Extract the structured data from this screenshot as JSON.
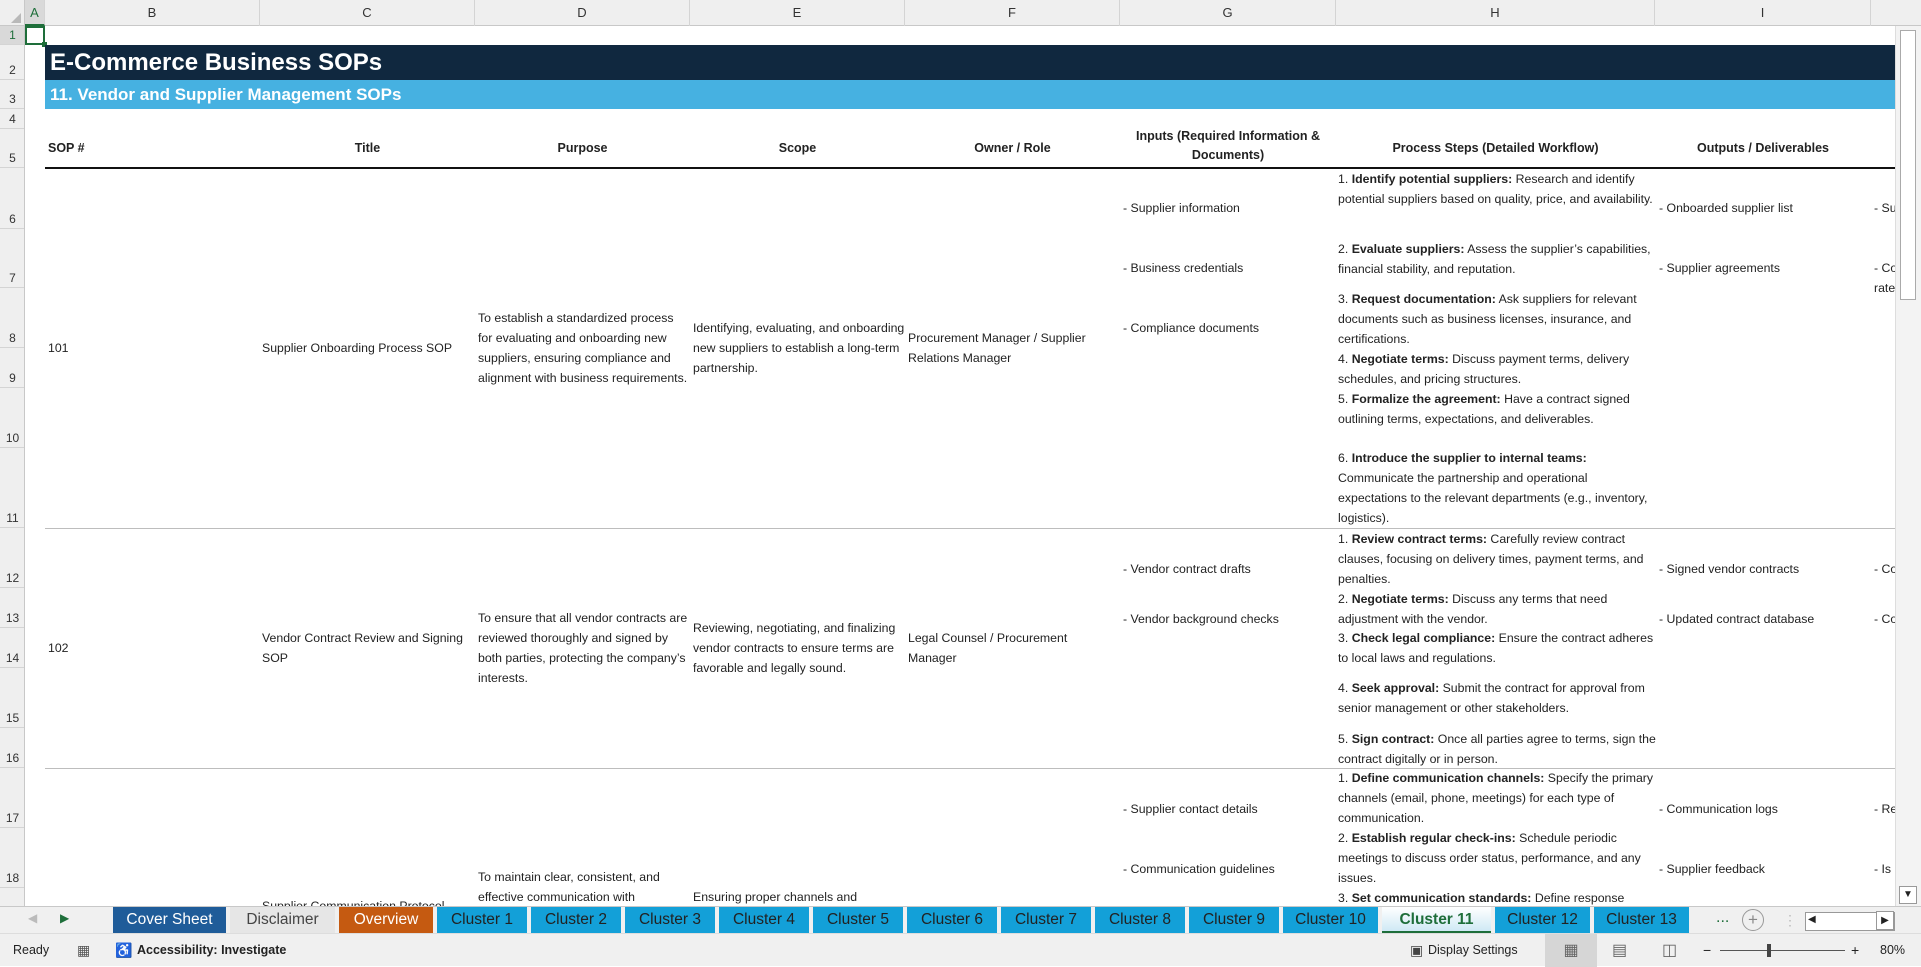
{
  "columns": [
    "A",
    "B",
    "C",
    "D",
    "E",
    "F",
    "G",
    "H",
    "I"
  ],
  "rows": [
    "1",
    "2",
    "3",
    "4",
    "5",
    "6",
    "7",
    "8",
    "9",
    "10",
    "11",
    "12",
    "13",
    "14",
    "15",
    "16",
    "17",
    "18"
  ],
  "sheet": {
    "title": "E-Commerce Business SOPs",
    "subtitle": "11. Vendor and Supplier Management SOPs",
    "headers": {
      "sop": "SOP #",
      "title": "Title",
      "purpose": "Purpose",
      "scope": "Scope",
      "owner": "Owner / Role",
      "inputs": "Inputs (Required Information & Documents)",
      "steps": "Process Steps (Detailed Workflow)",
      "outputs": "Outputs / Deliverables"
    },
    "sops": [
      {
        "id": "101",
        "title": "Supplier Onboarding Process SOP",
        "purpose": "To establish a standardized process for evaluating and onboarding new suppliers, ensuring compliance and alignment with business requirements.",
        "scope": "Identifying, evaluating, and onboarding new suppliers to establish a long-term partnership.",
        "owner": "Procurement Manager / Supplier Relations Manager",
        "inputs": [
          "- Supplier information",
          "- Business credentials",
          "- Compliance documents"
        ],
        "steps": [
          {
            "num": "1. ",
            "bold": "Identify potential suppliers:",
            "text": " Research and identify potential suppliers based on quality, price, and availability."
          },
          {
            "num": "2. ",
            "bold": "Evaluate suppliers:",
            "text": " Assess the supplier’s capabilities, financial stability, and reputation."
          },
          {
            "num": "3. ",
            "bold": "Request documentation:",
            "text": " Ask suppliers for relevant documents such as business licenses, insurance, and certifications."
          },
          {
            "num": "4. ",
            "bold": "Negotiate terms:",
            "text": " Discuss payment terms, delivery schedules, and pricing structures."
          },
          {
            "num": "5. ",
            "bold": "Formalize the agreement:",
            "text": " Have a contract signed outlining terms, expectations, and deliverables."
          },
          {
            "num": "6. ",
            "bold": "Introduce the supplier to internal teams:",
            "text": " Communicate the partnership and operational expectations to the relevant departments (e.g., inventory, logistics)."
          }
        ],
        "outputs": [
          "- Onboarded supplier list",
          "- Supplier agreements"
        ],
        "next_col": [
          "- Su",
          "- Co",
          "rate"
        ]
      },
      {
        "id": "102",
        "title": "Vendor Contract Review and Signing SOP",
        "purpose": "To ensure that all vendor contracts are reviewed thoroughly and signed by both parties, protecting the company’s interests.",
        "scope": "Reviewing, negotiating, and finalizing vendor contracts to ensure terms are favorable and legally sound.",
        "owner": "Legal Counsel / Procurement Manager",
        "inputs": [
          "- Vendor contract drafts",
          "- Vendor background checks"
        ],
        "steps": [
          {
            "num": "1. ",
            "bold": "Review contract terms:",
            "text": " Carefully review contract clauses, focusing on delivery times, payment terms, and penalties."
          },
          {
            "num": "2. ",
            "bold": "Negotiate terms:",
            "text": " Discuss any terms that need adjustment with the vendor."
          },
          {
            "num": "3. ",
            "bold": "Check legal compliance:",
            "text": " Ensure the contract adheres to local laws and regulations."
          },
          {
            "num": "4. ",
            "bold": "Seek approval:",
            "text": " Submit the contract for approval from senior management or other stakeholders."
          },
          {
            "num": "5. ",
            "bold": "Sign contract:",
            "text": " Once all parties agree to terms, sign the contract digitally or in person."
          }
        ],
        "outputs": [
          "- Signed vendor contracts",
          "- Updated contract database"
        ],
        "next_col": [
          "- Co",
          "- Co"
        ]
      },
      {
        "title": "Supplier Communication Protocol",
        "purpose": "To maintain clear, consistent, and effective communication with",
        "scope": "Ensuring proper channels and",
        "inputs": [
          "- Supplier contact details",
          "- Communication guidelines"
        ],
        "steps": [
          {
            "num": "1. ",
            "bold": "Define communication channels:",
            "text": " Specify the primary channels (email, phone, meetings) for each type of communication."
          },
          {
            "num": "2. ",
            "bold": "Establish regular check-ins:",
            "text": " Schedule periodic meetings to discuss order status, performance, and any issues."
          },
          {
            "num": "3. ",
            "bold": "Set communication standards:",
            "text": " Define response"
          }
        ],
        "outputs": [
          "- Communication logs",
          "- Supplier feedback"
        ],
        "next_col": [
          "- Re",
          "- Is"
        ]
      }
    ]
  },
  "tabs": [
    "Cover Sheet",
    "Disclaimer",
    "Overview",
    "Cluster 1",
    "Cluster 2",
    "Cluster 3",
    "Cluster 4",
    "Cluster 5",
    "Cluster 6",
    "Cluster 7",
    "Cluster 8",
    "Cluster 9",
    "Cluster 10",
    "Cluster 11",
    "Cluster 12",
    "Cluster 13"
  ],
  "active_tab": "Cluster 11",
  "tabs_more": "...",
  "status": {
    "ready": "Ready",
    "accessibility": "Accessibility: Investigate",
    "display_settings": "Display Settings",
    "zoom": "80%"
  },
  "colors": {
    "title_bg": "#10283f",
    "subtitle_bg": "#46b1e1",
    "cluster_tab": "#13a0d8",
    "cover_tab": "#1f5c99",
    "overview_tab": "#c55a11",
    "selection": "#1e6e3a"
  }
}
